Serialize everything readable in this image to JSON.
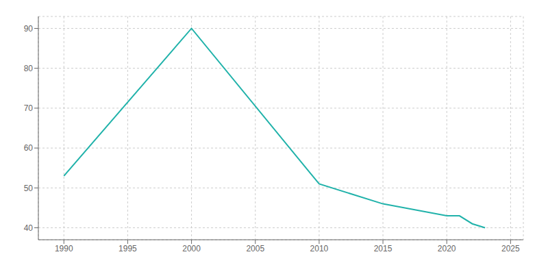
{
  "chart_data": {
    "type": "line",
    "x": [
      1990,
      2000,
      2010,
      2015,
      2020,
      2021,
      2022,
      2023
    ],
    "values": [
      53,
      90,
      51,
      46,
      43,
      43,
      41,
      40
    ],
    "color": "#20b2aa",
    "xlim": [
      1988,
      2026
    ],
    "ylim": [
      37,
      93
    ],
    "xticks": [
      1990,
      1995,
      2000,
      2005,
      2010,
      2015,
      2020,
      2025
    ],
    "yticks": [
      40,
      50,
      60,
      70,
      80,
      90
    ],
    "grid": true
  }
}
